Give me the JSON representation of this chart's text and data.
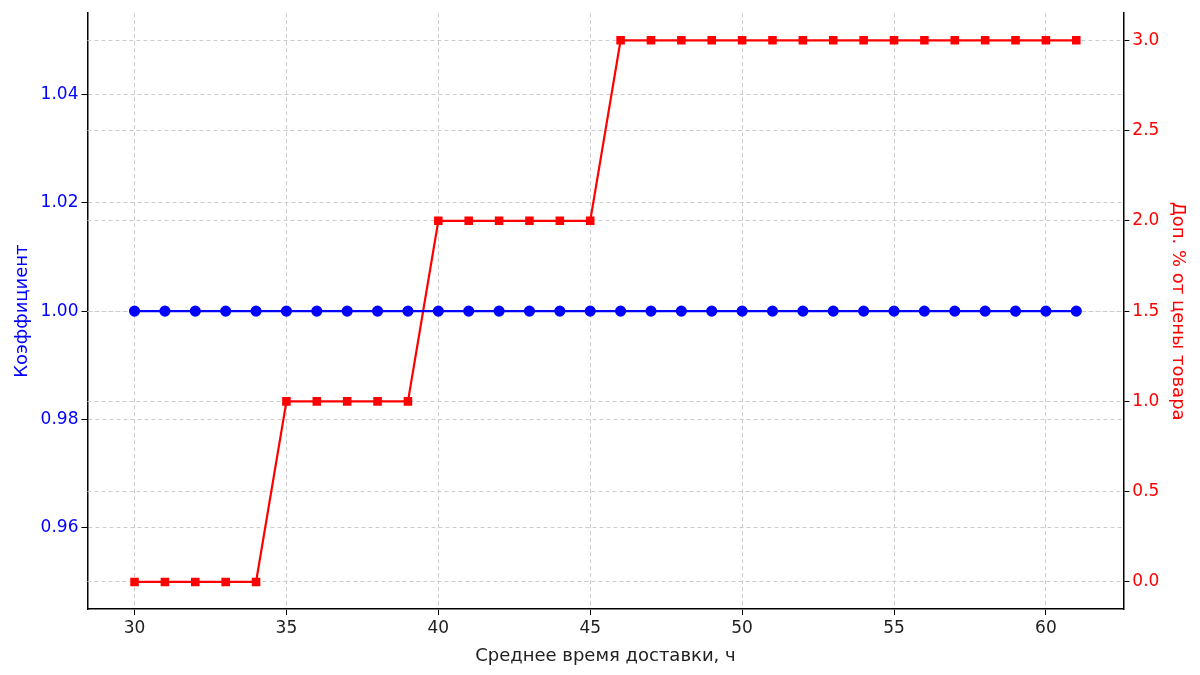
{
  "chart_data": {
    "type": "line",
    "xlabel": "Среднее время доставки, ч",
    "ylabel": "Коэффициент",
    "y2label": "Доп. % от цены товара",
    "x": [
      30,
      31,
      32,
      33,
      34,
      35,
      36,
      37,
      38,
      39,
      40,
      41,
      42,
      43,
      44,
      45,
      46,
      47,
      48,
      49,
      50,
      51,
      52,
      53,
      54,
      55,
      56,
      57,
      58,
      59,
      60,
      61
    ],
    "series": [
      {
        "axis": "y",
        "color": "#0000ff",
        "marker": "circle",
        "values": [
          1,
          1,
          1,
          1,
          1,
          1,
          1,
          1,
          1,
          1,
          1,
          1,
          1,
          1,
          1,
          1,
          1,
          1,
          1,
          1,
          1,
          1,
          1,
          1,
          1,
          1,
          1,
          1,
          1,
          1,
          1,
          1
        ]
      },
      {
        "axis": "y2",
        "color": "#ff0000",
        "marker": "square",
        "values": [
          0,
          0,
          0,
          0,
          0,
          1,
          1,
          1,
          1,
          1,
          2,
          2,
          2,
          2,
          2,
          2,
          3,
          3,
          3,
          3,
          3,
          3,
          3,
          3,
          3,
          3,
          3,
          3,
          3,
          3,
          3,
          3
        ]
      }
    ],
    "xlim": [
      28.45,
      62.55
    ],
    "xticks": [
      30,
      35,
      40,
      45,
      50,
      55,
      60
    ],
    "ylim": [
      0.945,
      1.055
    ],
    "yticks": [
      {
        "value": 0.96,
        "label": "0.96"
      },
      {
        "value": 0.98,
        "label": "0.98"
      },
      {
        "value": 1,
        "label": "1.00"
      },
      {
        "value": 1.02,
        "label": "1.02"
      },
      {
        "value": 1.04,
        "label": "1.04"
      }
    ],
    "y2lim": [
      -0.15,
      3.15
    ],
    "y2ticks": [
      {
        "value": 0,
        "label": "0.0"
      },
      {
        "value": 0.5,
        "label": "0.5"
      },
      {
        "value": 1,
        "label": "1.0"
      },
      {
        "value": 1.5,
        "label": "1.5"
      },
      {
        "value": 2,
        "label": "2.0"
      },
      {
        "value": 2.5,
        "label": "2.5"
      },
      {
        "value": 3,
        "label": "3.0"
      }
    ],
    "grid": true,
    "line_style": "solid",
    "legend": false
  }
}
